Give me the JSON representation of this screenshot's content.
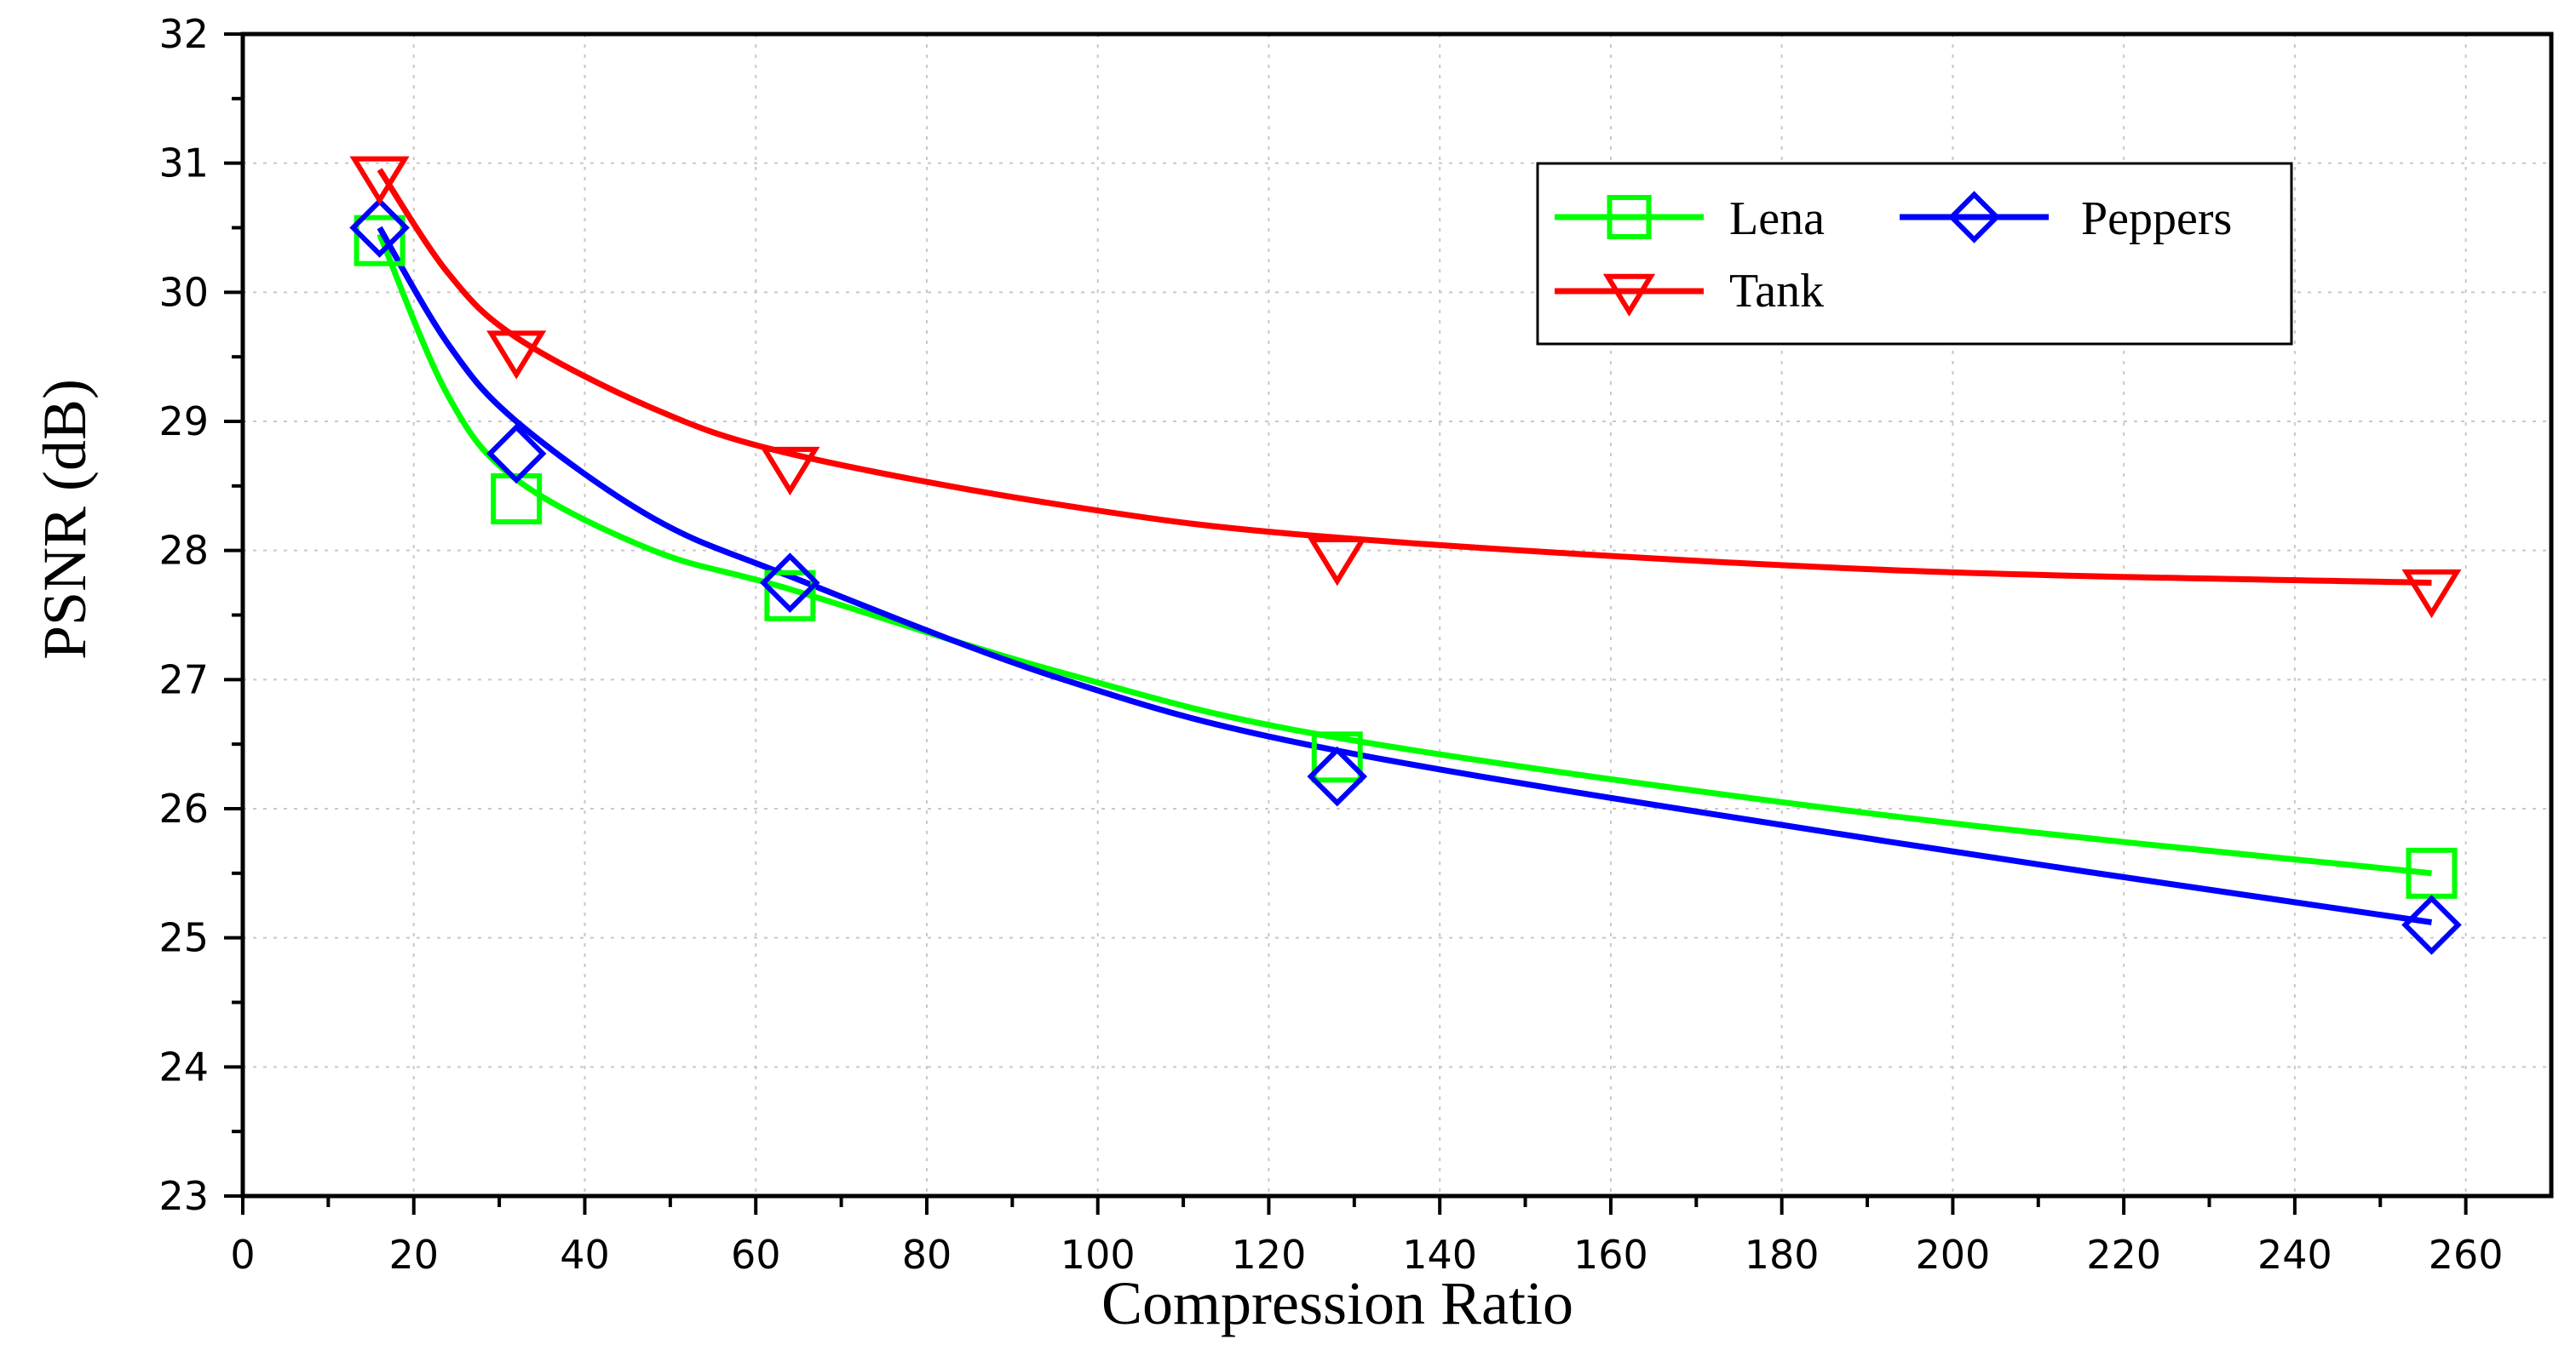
{
  "chart_data": {
    "type": "line",
    "title": "",
    "xlabel": "Compression Ratio",
    "ylabel": "PSNR (dB)",
    "xlim": [
      0,
      270
    ],
    "ylim": [
      23,
      32
    ],
    "xticks": [
      0,
      20,
      40,
      60,
      80,
      100,
      120,
      140,
      160,
      180,
      200,
      220,
      240,
      260
    ],
    "yticks": [
      23,
      24,
      25,
      26,
      27,
      28,
      29,
      30,
      31,
      32
    ],
    "grid": true,
    "legend_position": "top-right",
    "x": [
      16,
      32,
      64,
      128,
      256
    ],
    "series": [
      {
        "name": "Lena",
        "values": [
          30.4,
          28.4,
          27.65,
          26.4,
          25.5
        ],
        "color": "#00ff00",
        "marker": "square",
        "fit_x": [
          16,
          24,
          32,
          48,
          64,
          96,
          128,
          192,
          256
        ],
        "fit_y": [
          30.45,
          29.2,
          28.55,
          28.0,
          27.7,
          27.05,
          26.55,
          25.95,
          25.5
        ]
      },
      {
        "name": "Peppers",
        "values": [
          30.5,
          28.75,
          27.75,
          26.25,
          25.1
        ],
        "color": "#0000ff",
        "marker": "diamond",
        "fit_x": [
          16,
          24,
          32,
          48,
          64,
          96,
          128,
          192,
          256
        ],
        "fit_y": [
          30.5,
          29.6,
          29.0,
          28.25,
          27.8,
          27.0,
          26.45,
          25.75,
          25.12
        ]
      },
      {
        "name": "Tank",
        "values": [
          30.9,
          29.55,
          28.65,
          27.95,
          27.7
        ],
        "color": "#ff0000",
        "marker": "triangle-down",
        "fit_x": [
          16,
          24,
          32,
          48,
          64,
          96,
          128,
          192,
          256
        ],
        "fit_y": [
          30.95,
          30.15,
          29.65,
          29.1,
          28.75,
          28.35,
          28.1,
          27.85,
          27.75
        ]
      }
    ]
  }
}
